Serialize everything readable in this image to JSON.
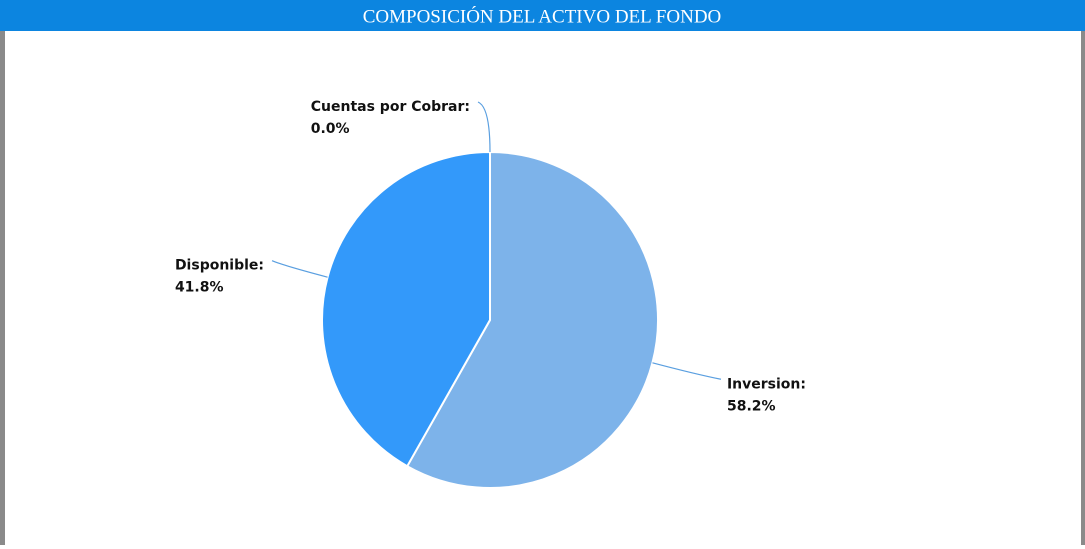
{
  "chart_data": {
    "type": "pie",
    "title": "COMPOSICIÓN DEL ACTIVO DEL FONDO",
    "categories": [
      "Inversion:",
      "Disponible:",
      "Cuentas por Cobrar:"
    ],
    "values": [
      58.2,
      41.8,
      0.0
    ],
    "value_labels": [
      "58.2%",
      "41.8%",
      "0.0%"
    ],
    "colors": [
      "#7db3ea",
      "#3399fa",
      "#2f7fd0"
    ]
  }
}
